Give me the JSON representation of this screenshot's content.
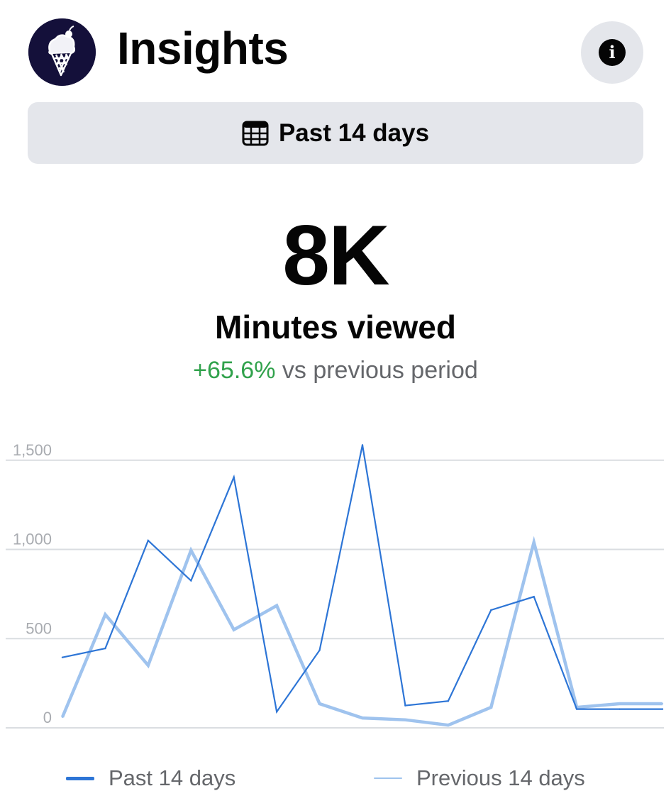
{
  "header": {
    "title": "Insights",
    "avatar_icon": "ice-cream-cone-logo",
    "info_icon": "info-icon"
  },
  "period_selector": {
    "label": "Past 14 days",
    "icon": "calendar-icon"
  },
  "metric": {
    "value": "8K",
    "label": "Minutes viewed",
    "change_percent": "+65.6%",
    "change_text": " vs previous period",
    "change_color": "#31a24c"
  },
  "chart_data": {
    "type": "line",
    "title": "",
    "xlabel": "",
    "ylabel": "",
    "ylim": [
      0,
      1600
    ],
    "yticks": [
      0,
      500,
      1000,
      1500
    ],
    "ytick_labels": [
      "0",
      "500",
      "1,000",
      "1,500"
    ],
    "grid": true,
    "legend_position": "bottom",
    "x": [
      1,
      2,
      3,
      4,
      5,
      6,
      7,
      8,
      9,
      10,
      11,
      12,
      13,
      14,
      15
    ],
    "series": [
      {
        "name": "Past 14 days",
        "color": "#2d75d6",
        "values": [
          395,
          445,
          1050,
          825,
          1405,
          90,
          435,
          1585,
          125,
          150,
          660,
          735,
          105,
          105,
          105
        ]
      },
      {
        "name": "Previous 14 days",
        "color": "#9fc3ee",
        "values": [
          60,
          635,
          350,
          995,
          550,
          685,
          135,
          55,
          45,
          15,
          115,
          1040,
          115,
          135,
          135
        ]
      }
    ]
  }
}
